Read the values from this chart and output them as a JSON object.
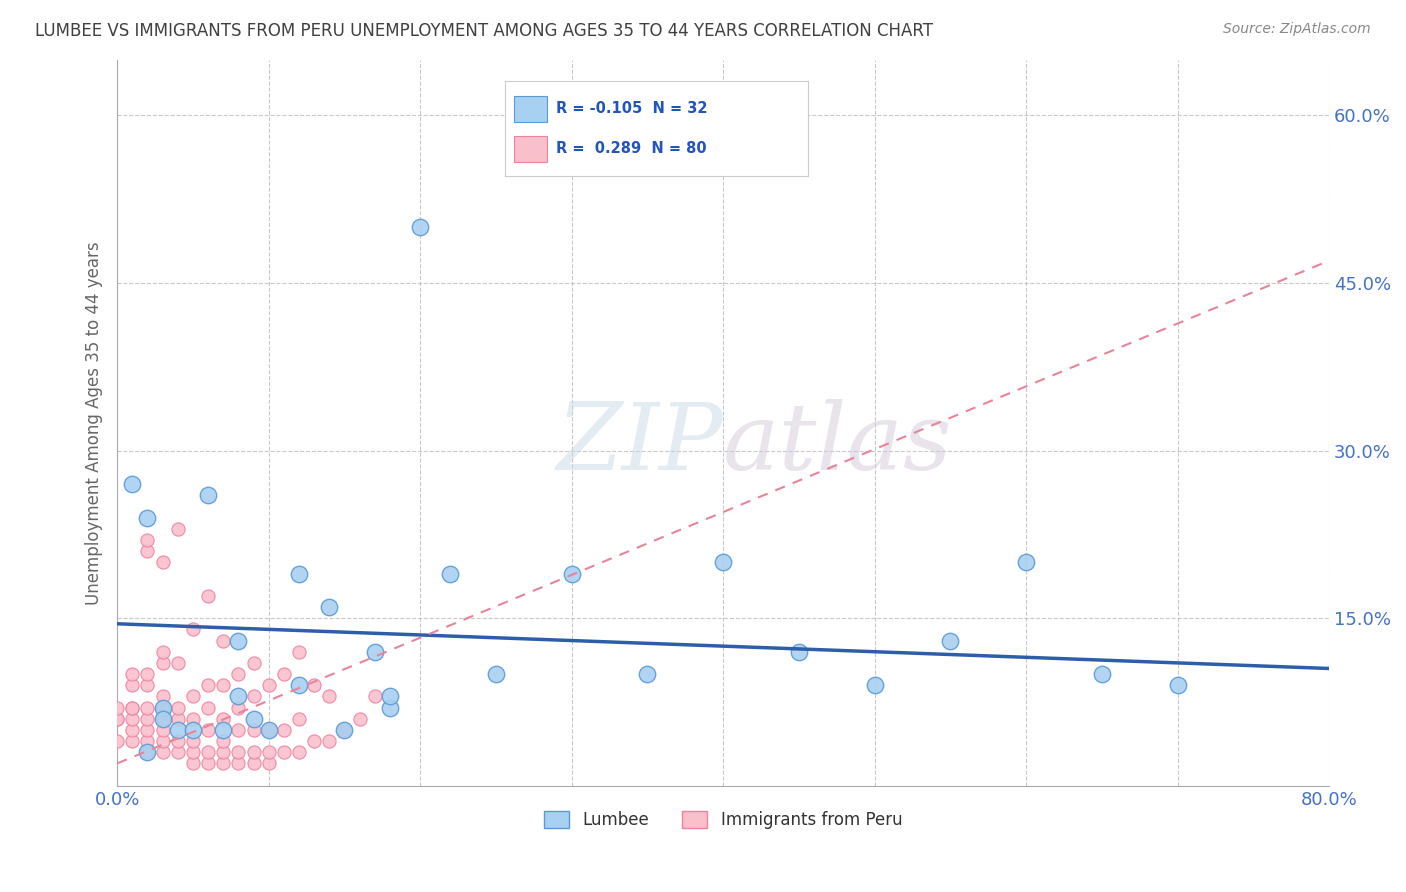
{
  "title": "LUMBEE VS IMMIGRANTS FROM PERU UNEMPLOYMENT AMONG AGES 35 TO 44 YEARS CORRELATION CHART",
  "source": "Source: ZipAtlas.com",
  "ylabel": "Unemployment Among Ages 35 to 44 years",
  "xlim": [
    0.0,
    0.8
  ],
  "ylim": [
    0.0,
    0.65
  ],
  "xticks": [
    0.0,
    0.1,
    0.2,
    0.3,
    0.4,
    0.5,
    0.6,
    0.7,
    0.8
  ],
  "xticklabels": [
    "0.0%",
    "",
    "",
    "",
    "",
    "",
    "",
    "",
    "80.0%"
  ],
  "ytick_positions": [
    0.0,
    0.15,
    0.3,
    0.45,
    0.6
  ],
  "yticklabels": [
    "",
    "15.0%",
    "30.0%",
    "45.0%",
    "60.0%"
  ],
  "lumbee_color": "#A8D0F0",
  "peru_color": "#F9C0CC",
  "lumbee_edge": "#5B9BD5",
  "peru_edge": "#F080A0",
  "trend_lumbee_color": "#2E5EAA",
  "trend_peru_color": "#E8849A",
  "watermark_zip": "ZIP",
  "watermark_atlas": "atlas",
  "legend_R1": "-0.105",
  "legend_N1": "32",
  "legend_R2": "0.289",
  "legend_N2": "80",
  "lumbee_x": [
    0.01,
    0.02,
    0.02,
    0.03,
    0.04,
    0.05,
    0.06,
    0.07,
    0.08,
    0.09,
    0.1,
    0.12,
    0.14,
    0.15,
    0.17,
    0.18,
    0.2,
    0.22,
    0.25,
    0.3,
    0.35,
    0.4,
    0.45,
    0.5,
    0.55,
    0.6,
    0.65,
    0.7,
    0.03,
    0.08,
    0.12,
    0.18
  ],
  "lumbee_y": [
    0.27,
    0.24,
    0.03,
    0.07,
    0.05,
    0.05,
    0.26,
    0.05,
    0.13,
    0.06,
    0.05,
    0.19,
    0.16,
    0.05,
    0.12,
    0.07,
    0.5,
    0.19,
    0.1,
    0.19,
    0.1,
    0.2,
    0.12,
    0.09,
    0.13,
    0.2,
    0.1,
    0.09,
    0.06,
    0.08,
    0.09,
    0.08
  ],
  "peru_x": [
    0.0,
    0.0,
    0.0,
    0.0,
    0.01,
    0.01,
    0.01,
    0.01,
    0.01,
    0.01,
    0.01,
    0.02,
    0.02,
    0.02,
    0.02,
    0.02,
    0.02,
    0.02,
    0.02,
    0.02,
    0.03,
    0.03,
    0.03,
    0.03,
    0.03,
    0.03,
    0.03,
    0.03,
    0.03,
    0.04,
    0.04,
    0.04,
    0.04,
    0.04,
    0.04,
    0.05,
    0.05,
    0.05,
    0.05,
    0.05,
    0.05,
    0.06,
    0.06,
    0.06,
    0.06,
    0.06,
    0.06,
    0.07,
    0.07,
    0.07,
    0.07,
    0.07,
    0.07,
    0.08,
    0.08,
    0.08,
    0.08,
    0.08,
    0.09,
    0.09,
    0.09,
    0.09,
    0.09,
    0.1,
    0.1,
    0.1,
    0.1,
    0.11,
    0.11,
    0.11,
    0.12,
    0.12,
    0.12,
    0.13,
    0.13,
    0.14,
    0.14,
    0.15,
    0.16,
    0.17
  ],
  "peru_y": [
    0.04,
    0.06,
    0.06,
    0.07,
    0.04,
    0.05,
    0.06,
    0.07,
    0.07,
    0.09,
    0.1,
    0.03,
    0.04,
    0.05,
    0.06,
    0.07,
    0.09,
    0.1,
    0.21,
    0.22,
    0.03,
    0.04,
    0.05,
    0.06,
    0.07,
    0.08,
    0.11,
    0.12,
    0.2,
    0.03,
    0.04,
    0.06,
    0.07,
    0.11,
    0.23,
    0.02,
    0.03,
    0.04,
    0.06,
    0.08,
    0.14,
    0.02,
    0.03,
    0.05,
    0.07,
    0.09,
    0.17,
    0.02,
    0.03,
    0.04,
    0.06,
    0.09,
    0.13,
    0.02,
    0.03,
    0.05,
    0.07,
    0.1,
    0.02,
    0.03,
    0.05,
    0.08,
    0.11,
    0.02,
    0.03,
    0.05,
    0.09,
    0.03,
    0.05,
    0.1,
    0.03,
    0.06,
    0.12,
    0.04,
    0.09,
    0.04,
    0.08,
    0.05,
    0.06,
    0.08
  ],
  "lumbee_trend_x0": 0.0,
  "lumbee_trend_y0": 0.145,
  "lumbee_trend_x1": 0.8,
  "lumbee_trend_y1": 0.105,
  "peru_trend_x0": 0.0,
  "peru_trend_y0": 0.02,
  "peru_trend_x1": 0.8,
  "peru_trend_y1": 0.47,
  "background_color": "#FFFFFF",
  "grid_color": "#BBBBBB",
  "title_color": "#404040",
  "tick_label_color": "#4472C4"
}
